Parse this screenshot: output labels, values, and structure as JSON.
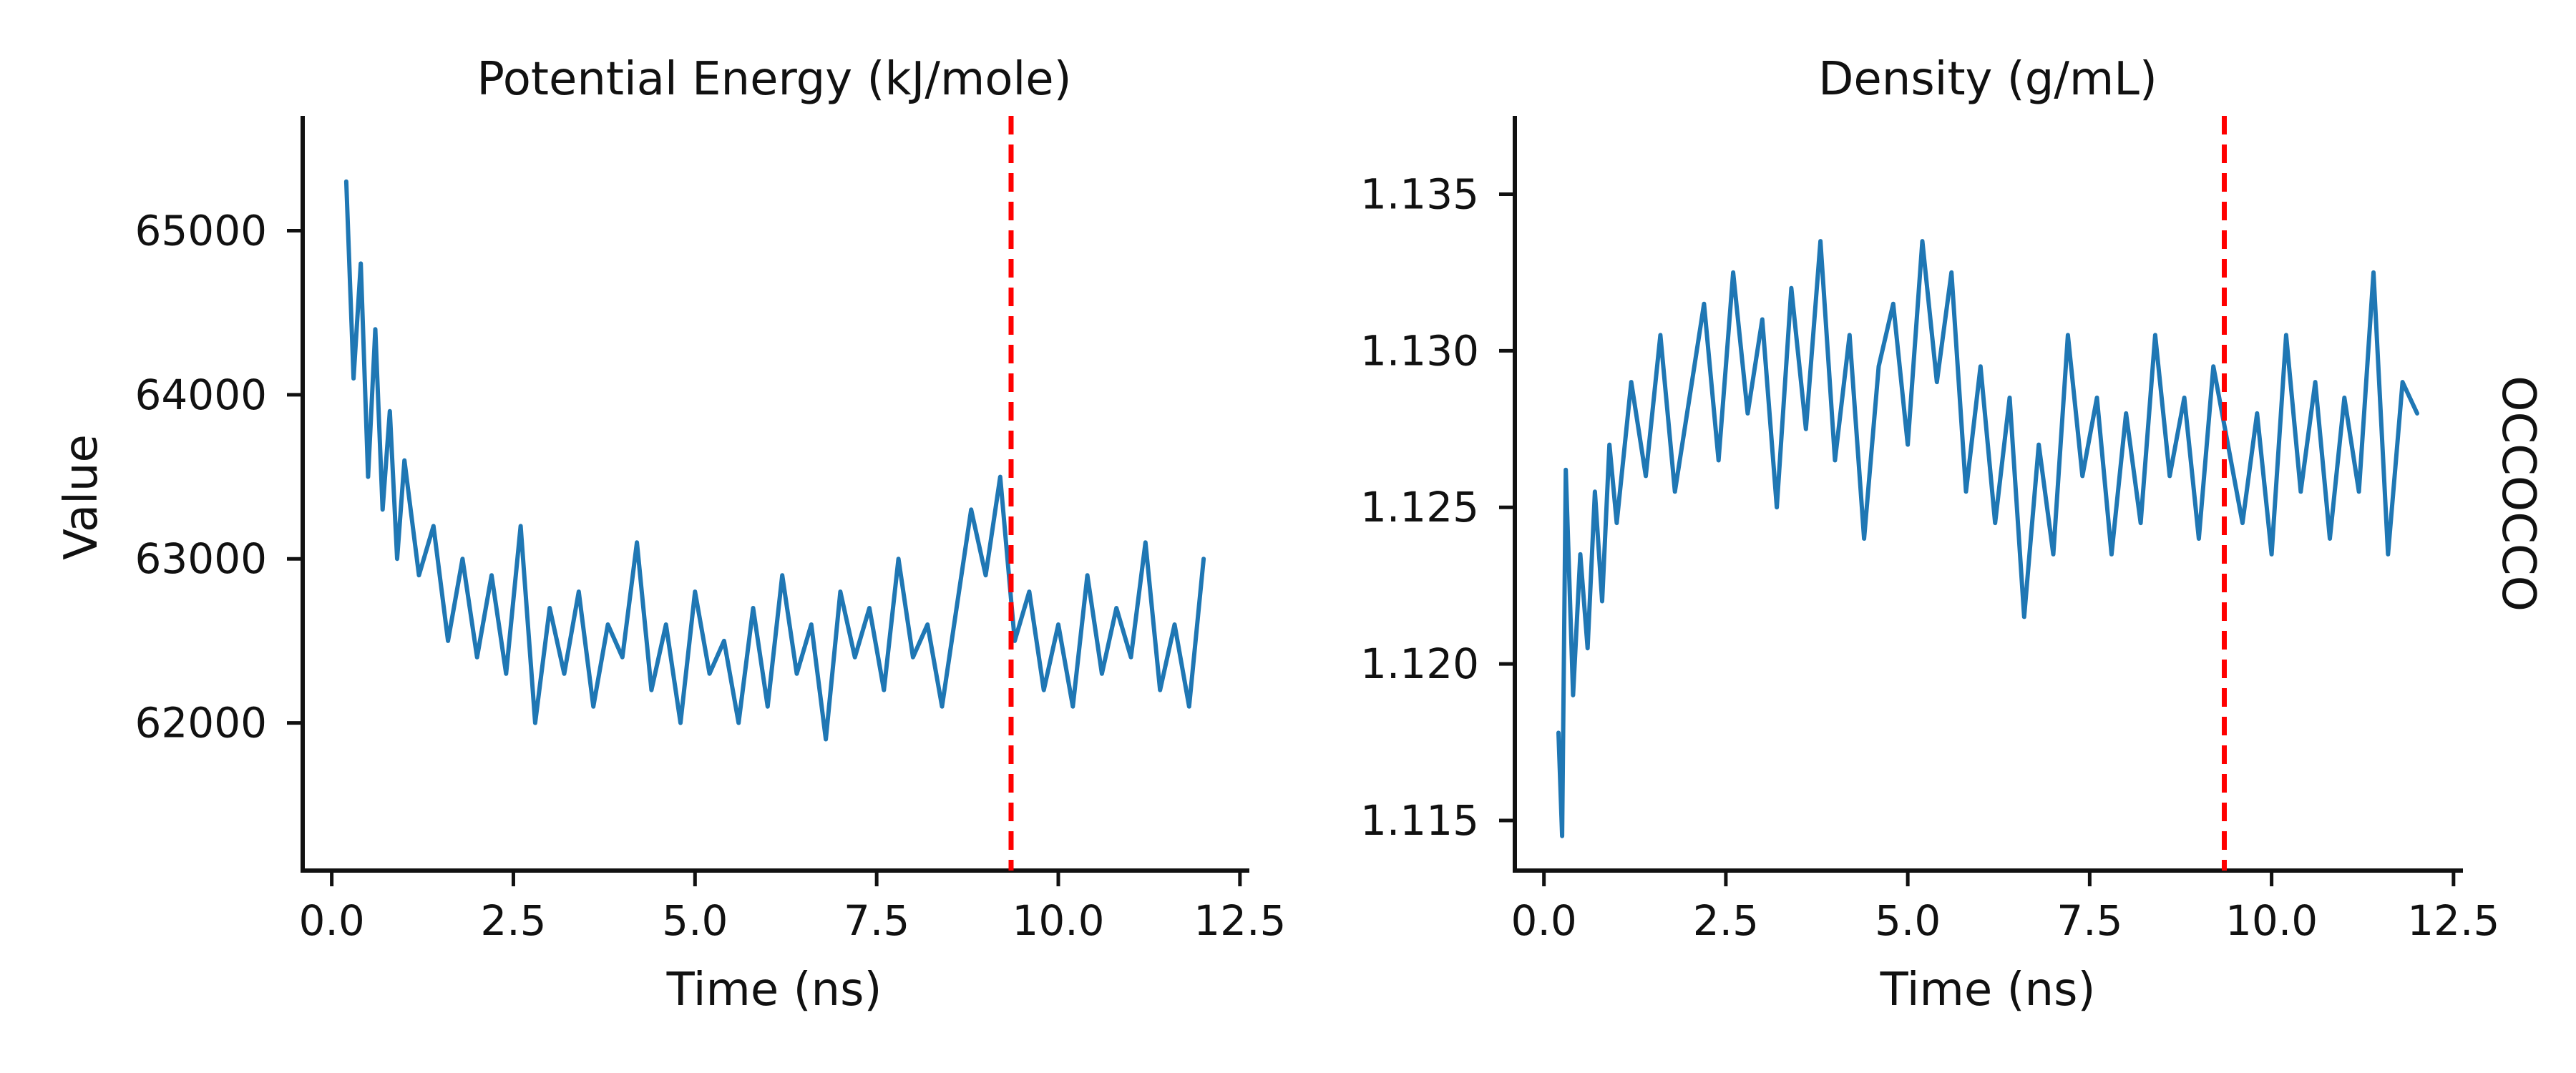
{
  "colors": {
    "series": "#1f77b4",
    "marker": "#ff0000",
    "axis": "#111111"
  },
  "figure": {
    "side_label": "OCCOCCO"
  },
  "chart_data": [
    {
      "type": "line",
      "title": "Potential Energy (kJ/mole)",
      "xlabel": "Time (ns)",
      "ylabel": "Value",
      "xlim": [
        -0.4,
        12.6
      ],
      "ylim": [
        61100,
        65700
      ],
      "xticks": [
        0.0,
        2.5,
        5.0,
        7.5,
        10.0,
        12.5
      ],
      "xtick_labels": [
        "0.0",
        "2.5",
        "5.0",
        "7.5",
        "10.0",
        "12.5"
      ],
      "yticks": [
        62000,
        63000,
        64000,
        65000
      ],
      "ytick_labels": [
        "62000",
        "63000",
        "64000",
        "65000"
      ],
      "vline_x": 9.35,
      "series": [
        {
          "x": [
            0.2,
            0.3,
            0.4,
            0.5,
            0.6,
            0.7,
            0.8,
            0.9,
            1.0,
            1.2,
            1.4,
            1.6,
            1.8,
            2.0,
            2.2,
            2.4,
            2.6,
            2.8,
            3.0,
            3.2,
            3.4,
            3.6,
            3.8,
            4.0,
            4.2,
            4.4,
            4.6,
            4.8,
            5.0,
            5.2,
            5.4,
            5.6,
            5.8,
            6.0,
            6.2,
            6.4,
            6.6,
            6.8,
            7.0,
            7.2,
            7.4,
            7.6,
            7.8,
            8.0,
            8.2,
            8.4,
            8.6,
            8.8,
            9.0,
            9.2,
            9.4,
            9.6,
            9.8,
            10.0,
            10.2,
            10.4,
            10.6,
            10.8,
            11.0,
            11.2,
            11.4,
            11.6,
            11.8,
            12.0
          ],
          "y": [
            65300,
            64100,
            64800,
            63500,
            64400,
            63300,
            63900,
            63000,
            63600,
            62900,
            63200,
            62500,
            63000,
            62400,
            62900,
            62300,
            63200,
            62000,
            62700,
            62300,
            62800,
            62100,
            62600,
            62400,
            63100,
            62200,
            62600,
            62000,
            62800,
            62300,
            62500,
            62000,
            62700,
            62100,
            62900,
            62300,
            62600,
            61900,
            62800,
            62400,
            62700,
            62200,
            63000,
            62400,
            62600,
            62100,
            62700,
            63300,
            62900,
            63500,
            62500,
            62800,
            62200,
            62600,
            62100,
            62900,
            62300,
            62700,
            62400,
            63100,
            62200,
            62600,
            62100,
            63000
          ]
        }
      ]
    },
    {
      "type": "line",
      "title": "Density (g/mL)",
      "xlabel": "Time (ns)",
      "ylabel": "",
      "xlim": [
        -0.4,
        12.6
      ],
      "ylim": [
        1.1134,
        1.1375
      ],
      "xticks": [
        0.0,
        2.5,
        5.0,
        7.5,
        10.0,
        12.5
      ],
      "xtick_labels": [
        "0.0",
        "2.5",
        "5.0",
        "7.5",
        "10.0",
        "12.5"
      ],
      "yticks": [
        1.115,
        1.12,
        1.125,
        1.13,
        1.135
      ],
      "ytick_labels": [
        "1.115",
        "1.120",
        "1.125",
        "1.130",
        "1.135"
      ],
      "vline_x": 9.35,
      "series": [
        {
          "x": [
            0.2,
            0.25,
            0.3,
            0.4,
            0.5,
            0.6,
            0.7,
            0.8,
            0.9,
            1.0,
            1.2,
            1.4,
            1.6,
            1.8,
            2.0,
            2.2,
            2.4,
            2.6,
            2.8,
            3.0,
            3.2,
            3.4,
            3.6,
            3.8,
            4.0,
            4.2,
            4.4,
            4.6,
            4.8,
            5.0,
            5.2,
            5.4,
            5.6,
            5.8,
            6.0,
            6.2,
            6.4,
            6.6,
            6.8,
            7.0,
            7.2,
            7.4,
            7.6,
            7.8,
            8.0,
            8.2,
            8.4,
            8.6,
            8.8,
            9.0,
            9.2,
            9.4,
            9.6,
            9.8,
            10.0,
            10.2,
            10.4,
            10.6,
            10.8,
            11.0,
            11.2,
            11.4,
            11.6,
            11.8,
            12.0
          ],
          "y": [
            1.1178,
            1.1145,
            1.1262,
            1.119,
            1.1235,
            1.1205,
            1.1255,
            1.122,
            1.127,
            1.1245,
            1.129,
            1.126,
            1.1305,
            1.1255,
            1.1285,
            1.1315,
            1.1265,
            1.1325,
            1.128,
            1.131,
            1.125,
            1.132,
            1.1275,
            1.1335,
            1.1265,
            1.1305,
            1.124,
            1.1295,
            1.1315,
            1.127,
            1.1335,
            1.129,
            1.1325,
            1.1255,
            1.1295,
            1.1245,
            1.1285,
            1.1215,
            1.127,
            1.1235,
            1.1305,
            1.126,
            1.1285,
            1.1235,
            1.128,
            1.1245,
            1.1305,
            1.126,
            1.1285,
            1.124,
            1.1295,
            1.127,
            1.1245,
            1.128,
            1.1235,
            1.1305,
            1.1255,
            1.129,
            1.124,
            1.1285,
            1.1255,
            1.1325,
            1.1235,
            1.129,
            1.128
          ]
        }
      ]
    }
  ]
}
